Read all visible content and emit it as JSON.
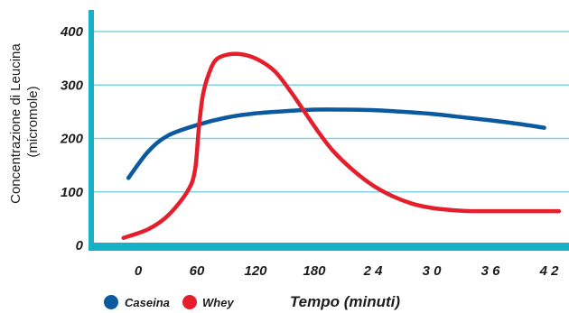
{
  "chart_data": {
    "type": "line",
    "title": "",
    "xlabel": "Tempo (minuti)",
    "ylabel_lines": [
      "Concentrazione di Leucina",
      "(micromole)"
    ],
    "x_tick_labels": [
      "0",
      "60",
      "120",
      "180",
      "2 4",
      "3 0",
      "3 6",
      "4 2"
    ],
    "x_tick_values": [
      0,
      60,
      120,
      180,
      240,
      300,
      360,
      420
    ],
    "y_tick_labels": [
      "0",
      "100",
      "200",
      "300",
      "400"
    ],
    "y_tick_values": [
      0,
      100,
      200,
      300,
      400
    ],
    "ylim": [
      0,
      400
    ],
    "xlim": [
      -50,
      430
    ],
    "grid": true,
    "legend_position": "bottom-left",
    "series": [
      {
        "name": "Caseina",
        "color": "#0b5aa0",
        "x": [
          -10,
          10,
          30,
          60,
          90,
          120,
          150,
          180,
          210,
          240,
          270,
          300,
          330,
          360,
          390,
          415
        ],
        "y": [
          126,
          175,
          205,
          225,
          239,
          247,
          251,
          254,
          254,
          253,
          250,
          246,
          240,
          234,
          227,
          220
        ]
      },
      {
        "name": "Whey",
        "color": "#e41e2b",
        "x": [
          -15,
          10,
          30,
          50,
          58,
          62,
          66,
          72,
          80,
          95,
          110,
          125,
          140,
          155,
          170,
          185,
          200,
          220,
          240,
          260,
          280,
          300,
          320,
          340,
          360,
          390,
          430
        ],
        "y": [
          14,
          30,
          55,
          100,
          140,
          220,
          280,
          320,
          348,
          358,
          356,
          345,
          325,
          290,
          250,
          210,
          175,
          140,
          112,
          92,
          78,
          70,
          66,
          64,
          64,
          64,
          64
        ]
      }
    ]
  },
  "colors": {
    "axis": "#16b1c7",
    "grid": "#7fd3dc"
  }
}
